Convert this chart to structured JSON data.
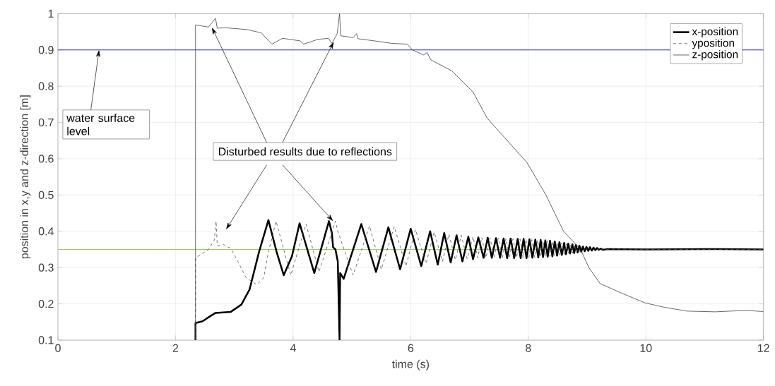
{
  "chart_data": {
    "type": "line",
    "xlabel": "time (s)",
    "ylabel": "position in x,y and z-direction [m]",
    "xlim": [
      0,
      12
    ],
    "xticks": [
      0,
      2,
      4,
      6,
      8,
      10,
      12
    ],
    "ylim": [
      0.1,
      1
    ],
    "yticks": [
      0.1,
      0.2,
      0.3,
      0.4,
      0.5,
      0.6,
      0.7,
      0.8,
      0.9,
      1
    ],
    "grid": true,
    "legend": "top right",
    "series": [
      {
        "name": "x-position",
        "color": "#000000",
        "line_style": "solid",
        "x": [
          2.34,
          2.34,
          2.46,
          2.58,
          2.68,
          2.94,
          3.12,
          3.26,
          3.42,
          3.58,
          3.72,
          3.84,
          3.98,
          4.11,
          4.36,
          4.61,
          4.66,
          4.68,
          4.72,
          4.76,
          4.79,
          4.8,
          4.86,
          5.16,
          5.41,
          5.62,
          5.82,
          6.0,
          6.18,
          6.33,
          6.46,
          6.57,
          6.68,
          6.78,
          6.88,
          6.98,
          7.06,
          7.15,
          7.24,
          7.31,
          7.38,
          7.45,
          7.52,
          7.58,
          7.64,
          7.7,
          7.76,
          7.82,
          7.87,
          7.92,
          7.97,
          8.02,
          8.07,
          8.12,
          8.17,
          8.21,
          8.25,
          8.29,
          8.33,
          8.37,
          8.41,
          8.45,
          8.49,
          8.53,
          8.57,
          8.61,
          8.64,
          8.68,
          8.71,
          8.75,
          8.78,
          8.81,
          8.84,
          8.87,
          8.9,
          8.93,
          8.96,
          8.99,
          9.02,
          9.05,
          9.08,
          9.11,
          9.14,
          9.17,
          9.2,
          9.23,
          9.27,
          9.35,
          10,
          11,
          12
        ],
        "values": [
          0.1,
          0.147,
          0.152,
          0.165,
          0.175,
          0.178,
          0.198,
          0.24,
          0.343,
          0.431,
          0.343,
          0.279,
          0.331,
          0.422,
          0.285,
          0.428,
          0.395,
          0.356,
          0.35,
          0.317,
          0.1,
          0.285,
          0.269,
          0.42,
          0.288,
          0.411,
          0.295,
          0.407,
          0.304,
          0.4,
          0.308,
          0.395,
          0.314,
          0.389,
          0.317,
          0.385,
          0.323,
          0.383,
          0.327,
          0.382,
          0.327,
          0.381,
          0.327,
          0.38,
          0.326,
          0.38,
          0.326,
          0.379,
          0.326,
          0.379,
          0.326,
          0.378,
          0.327,
          0.377,
          0.328,
          0.376,
          0.329,
          0.375,
          0.33,
          0.374,
          0.331,
          0.372,
          0.333,
          0.37,
          0.335,
          0.368,
          0.337,
          0.366,
          0.339,
          0.364,
          0.34,
          0.362,
          0.342,
          0.36,
          0.344,
          0.358,
          0.345,
          0.357,
          0.346,
          0.356,
          0.347,
          0.355,
          0.348,
          0.354,
          0.349,
          0.352,
          0.349,
          0.351,
          0.35,
          0.351,
          0.35
        ]
      },
      {
        "name": "yposition",
        "color": "#505050",
        "line_style": "dashed",
        "x": [
          2.34,
          2.34,
          2.4,
          2.56,
          2.66,
          2.69,
          2.71,
          2.82,
          2.94,
          3.06,
          3.2,
          3.38,
          3.5,
          3.58,
          3.71,
          3.96,
          4.22,
          4.44,
          4.72,
          4.76,
          5.02,
          5.3,
          5.5,
          5.72,
          5.92,
          6.08,
          6.26,
          6.4,
          6.54,
          6.65,
          6.76,
          6.86,
          6.96,
          7.06,
          7.14,
          7.21,
          7.28,
          7.35,
          7.42,
          7.49,
          7.56,
          7.62,
          7.68,
          7.74,
          7.8,
          7.86,
          7.91,
          7.96,
          8.01,
          8.06,
          8.11,
          8.16,
          8.21,
          8.25,
          8.29,
          8.33,
          8.37,
          8.41,
          8.45,
          8.49,
          8.53,
          8.57,
          8.61,
          8.65,
          8.68,
          8.72,
          8.75,
          8.79,
          8.82,
          8.85,
          8.88,
          8.91,
          8.94,
          8.97,
          9.0,
          9.03,
          9.06,
          9.09,
          9.12,
          9.15,
          9.18,
          9.21,
          9.24,
          9.27,
          9.31,
          9.4,
          10,
          11,
          12
        ],
        "values": [
          0.1,
          0.327,
          0.333,
          0.35,
          0.376,
          0.428,
          0.36,
          0.363,
          0.353,
          0.317,
          0.272,
          0.253,
          0.272,
          0.343,
          0.428,
          0.279,
          0.42,
          0.288,
          0.428,
          0.4,
          0.279,
          0.415,
          0.295,
          0.413,
          0.304,
          0.405,
          0.311,
          0.398,
          0.317,
          0.392,
          0.321,
          0.389,
          0.324,
          0.385,
          0.327,
          0.383,
          0.327,
          0.382,
          0.327,
          0.381,
          0.327,
          0.38,
          0.327,
          0.379,
          0.327,
          0.379,
          0.327,
          0.378,
          0.328,
          0.377,
          0.328,
          0.376,
          0.329,
          0.375,
          0.33,
          0.374,
          0.331,
          0.372,
          0.333,
          0.37,
          0.335,
          0.368,
          0.337,
          0.366,
          0.339,
          0.364,
          0.34,
          0.362,
          0.342,
          0.36,
          0.344,
          0.358,
          0.345,
          0.357,
          0.346,
          0.356,
          0.347,
          0.355,
          0.348,
          0.354,
          0.349,
          0.353,
          0.349,
          0.352,
          0.349,
          0.351,
          0.35,
          0.35,
          0.35
        ]
      },
      {
        "name": "z-position",
        "color": "#404040",
        "line_style": "solid",
        "x": [
          2.34,
          2.34,
          2.56,
          2.68,
          2.71,
          2.86,
          3.22,
          3.46,
          3.64,
          3.82,
          4.12,
          4.18,
          4.42,
          4.6,
          4.66,
          4.75,
          4.79,
          4.81,
          5.02,
          5.08,
          5.1,
          5.38,
          5.68,
          5.94,
          6.03,
          6.22,
          6.28,
          6.34,
          6.7,
          7.06,
          7.3,
          7.98,
          8.3,
          8.6,
          8.89,
          9.03,
          9.22,
          9.58,
          9.98,
          10.3,
          10.7,
          11.18,
          11.7,
          11.98,
          12
        ],
        "values": [
          0.1,
          0.969,
          0.963,
          0.987,
          0.96,
          0.961,
          0.956,
          0.947,
          0.916,
          0.932,
          0.925,
          0.916,
          0.929,
          0.932,
          0.918,
          0.945,
          1.0,
          0.939,
          0.934,
          0.945,
          0.931,
          0.925,
          0.918,
          0.916,
          0.9,
          0.886,
          0.893,
          0.873,
          0.842,
          0.784,
          0.712,
          0.589,
          0.5,
          0.4,
          0.35,
          0.3,
          0.256,
          0.23,
          0.203,
          0.191,
          0.18,
          0.178,
          0.182,
          0.179,
          0.179
        ]
      }
    ],
    "ref_lines": [
      {
        "axis": "y",
        "value": 0.9,
        "color": "#2b2bd0"
      },
      {
        "axis": "y",
        "value": 0.35,
        "color": "#9acd60"
      }
    ],
    "annotations": [
      {
        "text": "water surface level",
        "x": 0.7,
        "y": 0.9
      },
      {
        "text": "Disturbed results due to reflections",
        "x": 4.69,
        "y": 0.922
      }
    ]
  }
}
